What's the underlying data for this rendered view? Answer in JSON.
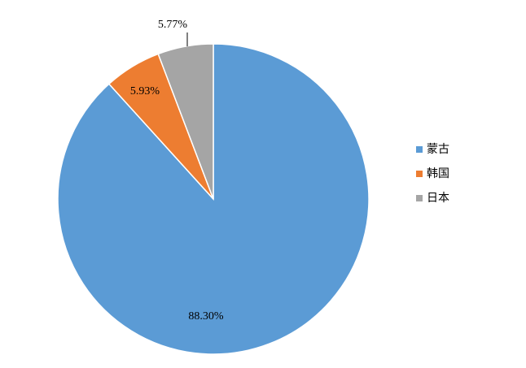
{
  "chart_data": {
    "type": "pie",
    "categories": [
      "蒙古",
      "韩国",
      "日本"
    ],
    "values": [
      88.3,
      5.93,
      5.77
    ],
    "value_labels": [
      "88.30%",
      "5.93%",
      "5.77%"
    ],
    "colors": [
      "#5b9bd5",
      "#ed7d31",
      "#a5a5a5"
    ],
    "legend": "right"
  }
}
